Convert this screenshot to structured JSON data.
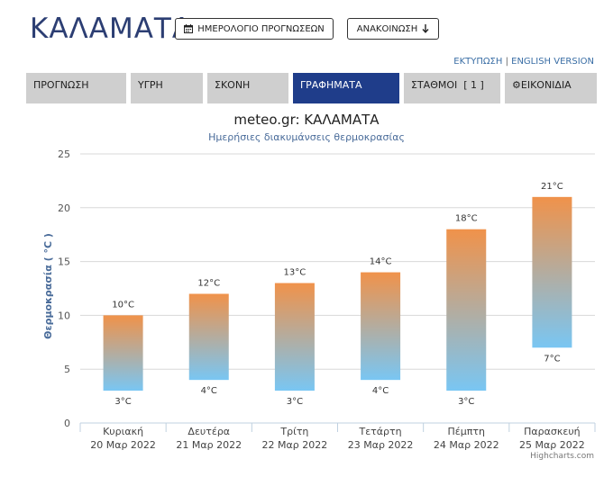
{
  "header": {
    "city": "ΚΑΛΑΜΑΤΑ",
    "calendar_button": "ΗΜΕΡΟΛΟΓΙΟ ΠΡΟΓΝΩΣΕΩΝ",
    "announce_button": "ΑΝΑΚΟΙΝΩΣΗ",
    "calendar_icon": "calendar-icon",
    "announce_icon": "arrow-down-icon"
  },
  "links": {
    "print": "ΕΚΤΥΠΩΣΗ",
    "separator": "|",
    "english": "ENGLISH VERSION"
  },
  "tabs": [
    {
      "label": "ΠΡΟΓΝΩΣΗ"
    },
    {
      "label": "ΥΓΡΗ"
    },
    {
      "label": "ΣΚΟΝΗ"
    },
    {
      "label": "ΓΡΑΦΗΜΑΤΑ",
      "active": true
    },
    {
      "label": "ΣΤΑΘΜΟΙ  [ 1 ]"
    },
    {
      "label": "ΕΙΚΟΝΙΔΙΑ",
      "icon": "gear-icon"
    }
  ],
  "colors": {
    "accent": "#1f3d8a",
    "bar_top": "#f0924a",
    "bar_bottom": "#79c6f3",
    "title": "#2c3e73"
  },
  "chart_data": {
    "type": "columnrange",
    "title": "meteo.gr: ΚΑΛΑΜΑΤΑ",
    "subtitle": "Ημερήσιες διακυμάνσεις θερμοκρασίας",
    "ylabel": "Θερμοκρασία ( °C )",
    "ylim": [
      0,
      25
    ],
    "yticks": [
      0,
      5,
      10,
      15,
      20,
      25
    ],
    "unit": "°C",
    "categories": [
      {
        "day": "Κυριακή",
        "date": "20 Μαρ 2022"
      },
      {
        "day": "Δευτέρα",
        "date": "21 Μαρ 2022"
      },
      {
        "day": "Τρίτη",
        "date": "22 Μαρ 2022"
      },
      {
        "day": "Τετάρτη",
        "date": "23 Μαρ 2022"
      },
      {
        "day": "Πέμπτη",
        "date": "24 Μαρ 2022"
      },
      {
        "day": "Παρασκευή",
        "date": "25 Μαρ 2022"
      }
    ],
    "min": [
      3,
      4,
      3,
      4,
      3,
      7
    ],
    "max": [
      10,
      12,
      13,
      14,
      18,
      21
    ],
    "grid": true,
    "legend": "none"
  },
  "credits": "Highcharts.com"
}
